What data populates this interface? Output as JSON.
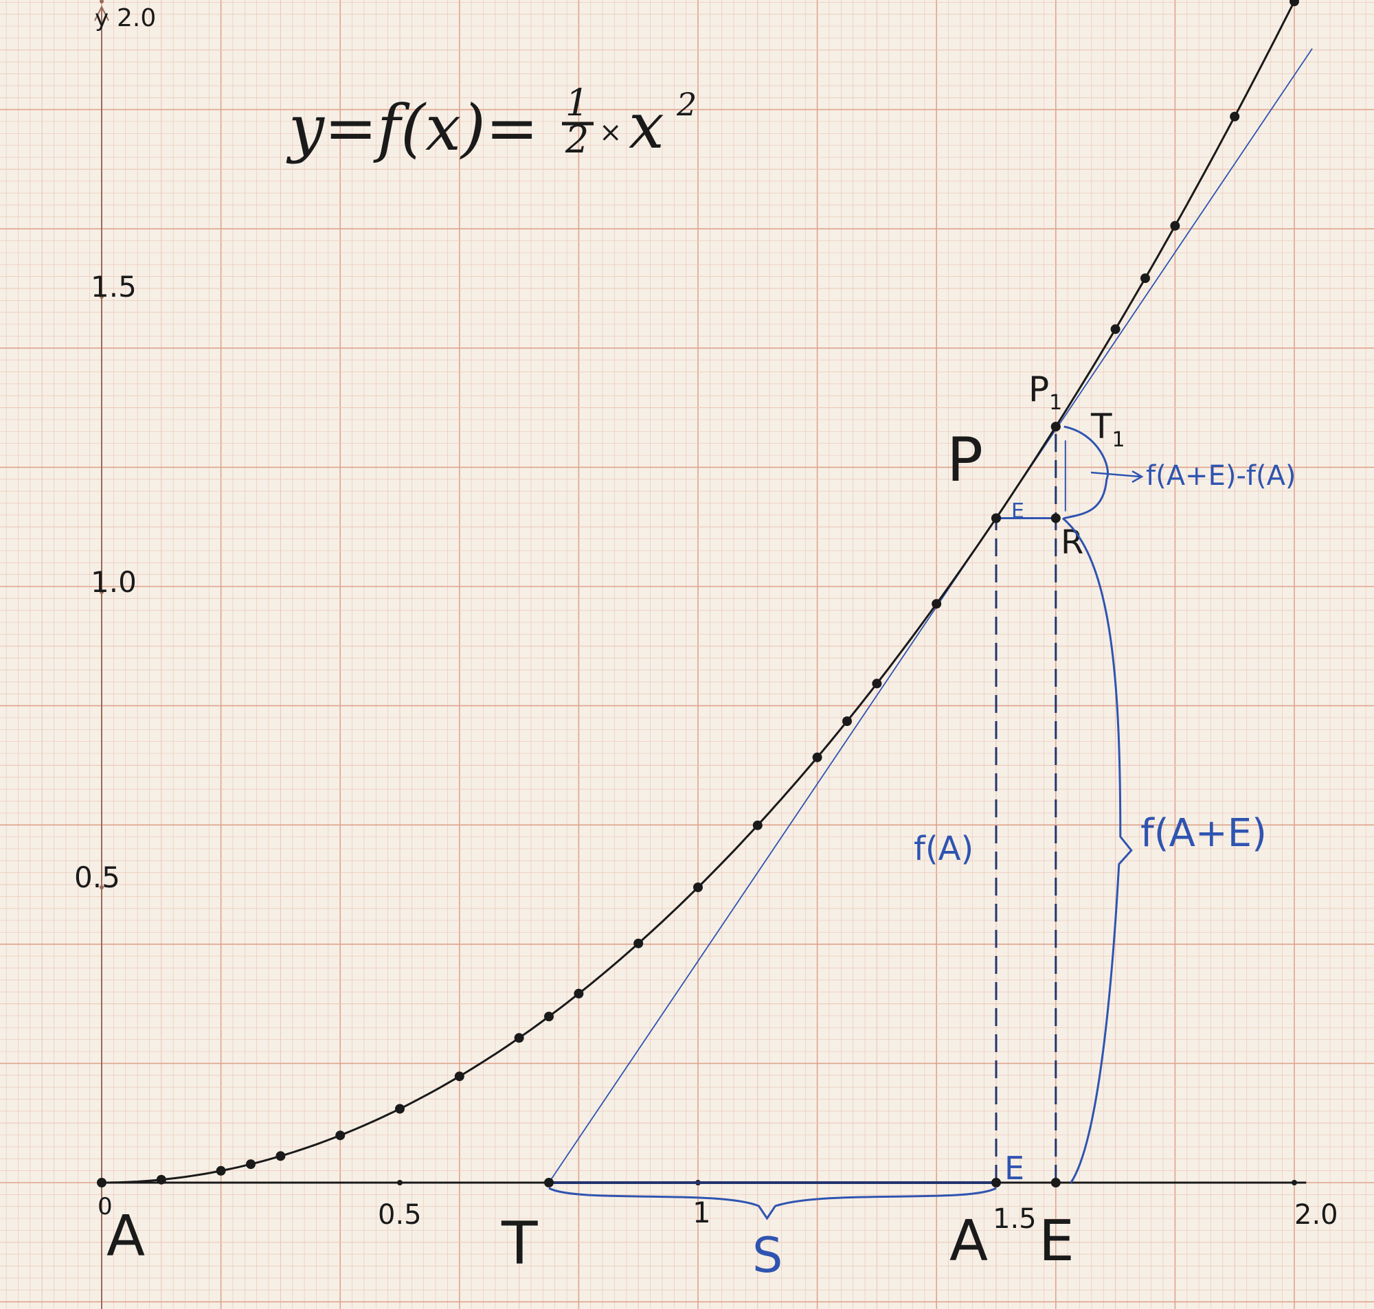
{
  "equation": {
    "lhs": "y=f(x)=",
    "frac_num": "1",
    "frac_den": "2",
    "times": "×",
    "var": "x",
    "exp": "2"
  },
  "axes": {
    "y_label": "y",
    "x_ticks": [
      {
        "value": 0,
        "label": "0"
      },
      {
        "value": 0.5,
        "label": "0.5"
      },
      {
        "value": 1,
        "label": "1"
      },
      {
        "value": 1.5,
        "label": "1.5"
      },
      {
        "value": 2,
        "label": "2.0"
      }
    ],
    "y_ticks": [
      {
        "value": 0.5,
        "label": "0.5"
      },
      {
        "value": 1,
        "label": "1.0"
      },
      {
        "value": 1.5,
        "label": "1.5"
      },
      {
        "value": 2,
        "label": "2.0"
      }
    ],
    "xlim": [
      0,
      2.2
    ],
    "ylim": [
      0,
      2.0
    ]
  },
  "points": {
    "A": "A",
    "T": "T",
    "A_prime": "A",
    "E_axis": "E",
    "P": "P",
    "P1_base": "P",
    "P1_sub": "1",
    "T1_base": "T",
    "T1_sub": "1",
    "R": "R"
  },
  "annotations": {
    "S": "S",
    "E_small": "E",
    "E_bottom": "E",
    "fA": "f(A)",
    "fAE": "f(A+E)",
    "diff": "f(A+E)-f(A)"
  },
  "curve": {
    "function": "y = 0.5 * x^2",
    "marked_x": [
      0.1,
      0.2,
      0.25,
      0.3,
      0.4,
      0.5,
      0.6,
      0.7,
      0.75,
      0.8,
      0.9,
      1.0,
      1.1,
      1.2,
      1.25,
      1.3,
      1.4,
      1.5,
      1.6,
      1.7,
      1.75,
      1.8,
      1.9,
      2.0
    ]
  },
  "construction": {
    "A_val": 1.5,
    "E_val": 0.1
  },
  "colors": {
    "paper": "#f6efe6",
    "grid_fine": "#ecc8b8",
    "grid_major": "#dea48d",
    "ink": "#1a1a1a",
    "blue": "#2f54b0"
  }
}
